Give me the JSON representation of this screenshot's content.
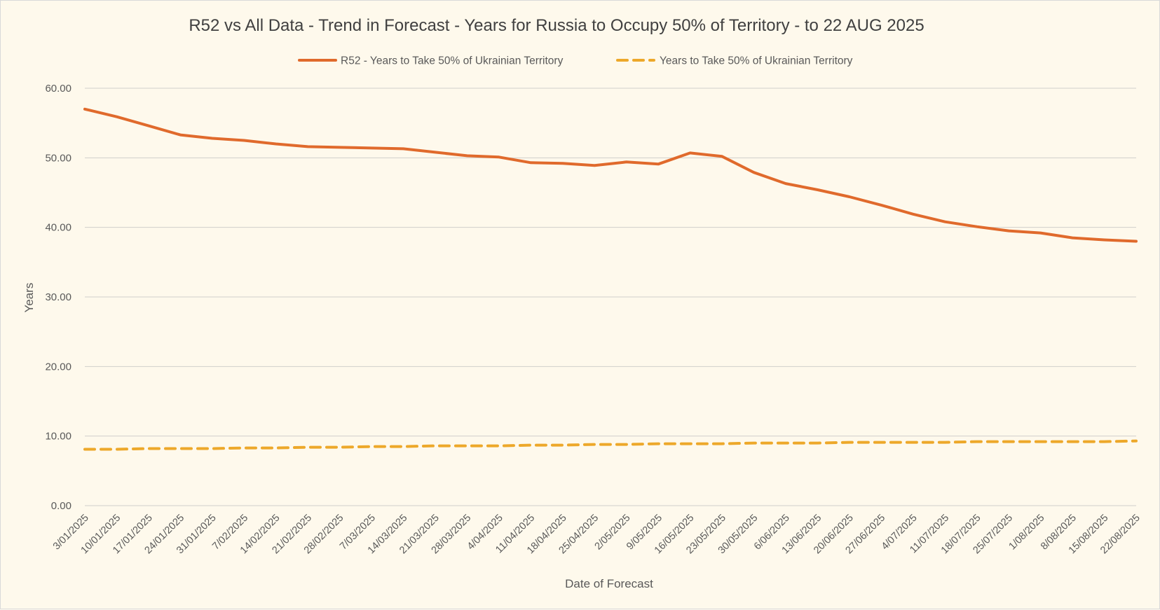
{
  "chart_data": {
    "type": "line",
    "title": "R52 vs All Data  - Trend in Forecast - Years for Russia to Occupy 50% of Territory - to 22 AUG 2025",
    "xlabel": "Date of Forecast",
    "ylabel": "Years",
    "ylim": [
      0,
      60
    ],
    "yticks": [
      "0.00",
      "10.00",
      "20.00",
      "30.00",
      "40.00",
      "50.00",
      "60.00"
    ],
    "grid": true,
    "legend_position": "top",
    "categories": [
      "3/01/2025",
      "10/01/2025",
      "17/01/2025",
      "24/01/2025",
      "31/01/2025",
      "7/02/2025",
      "14/02/2025",
      "21/02/2025",
      "28/02/2025",
      "7/03/2025",
      "14/03/2025",
      "21/03/2025",
      "28/03/2025",
      "4/04/2025",
      "11/04/2025",
      "18/04/2025",
      "25/04/2025",
      "2/05/2025",
      "9/05/2025",
      "16/05/2025",
      "23/05/2025",
      "30/05/2025",
      "6/06/2025",
      "13/06/2025",
      "20/06/2025",
      "27/06/2025",
      "4/07/2025",
      "11/07/2025",
      "18/07/2025",
      "25/07/2025",
      "1/08/2025",
      "8/08/2025",
      "15/08/2025",
      "22/08/2025"
    ],
    "series": [
      {
        "name": "R52 - Years to Take  50% of Ukrainian Territory",
        "color": "#e06a2c",
        "dash": "solid",
        "values": [
          57.0,
          55.9,
          54.6,
          53.3,
          52.8,
          52.5,
          52.0,
          51.6,
          51.5,
          51.4,
          51.3,
          50.8,
          50.3,
          50.1,
          49.3,
          49.2,
          48.9,
          49.4,
          49.1,
          50.7,
          50.2,
          47.9,
          46.3,
          45.4,
          44.4,
          43.2,
          41.9,
          40.8,
          40.1,
          39.5,
          39.2,
          38.5,
          38.2,
          38.0
        ]
      },
      {
        "name": "Years to Take  50% of Ukrainian Territory",
        "color": "#eda82a",
        "dash": "dashed",
        "values": [
          8.1,
          8.1,
          8.2,
          8.2,
          8.2,
          8.3,
          8.3,
          8.4,
          8.4,
          8.5,
          8.5,
          8.6,
          8.6,
          8.6,
          8.7,
          8.7,
          8.8,
          8.8,
          8.9,
          8.9,
          8.9,
          9.0,
          9.0,
          9.0,
          9.1,
          9.1,
          9.1,
          9.1,
          9.2,
          9.2,
          9.2,
          9.2,
          9.2,
          9.3
        ]
      }
    ]
  }
}
